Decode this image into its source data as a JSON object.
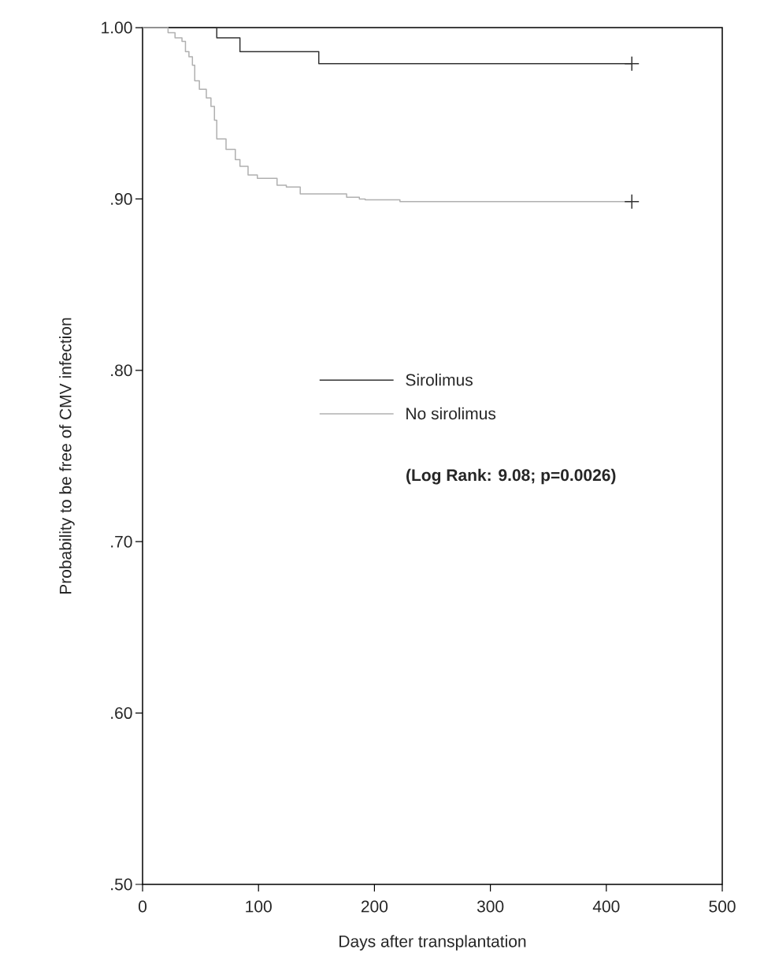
{
  "chart_data": {
    "type": "step",
    "xlabel": "Days after transplantation",
    "ylabel": "Probability to be free of CMV infection",
    "xlim": [
      0,
      500
    ],
    "ylim": [
      0.5,
      1.0
    ],
    "xticks": [
      0,
      100,
      200,
      300,
      400,
      500
    ],
    "yticks": [
      {
        "value": 0.5,
        "label": ".50"
      },
      {
        "value": 0.6,
        "label": ".60"
      },
      {
        "value": 0.7,
        "label": ".70"
      },
      {
        "value": 0.8,
        "label": ".80"
      },
      {
        "value": 0.9,
        "label": ".90"
      },
      {
        "value": 1.0,
        "label": "1.00"
      }
    ],
    "legend": "center",
    "annotations": [
      "(Log Rank: 9.08; p=0.0026)"
    ],
    "series": [
      {
        "name": "Sirolimus",
        "color": "#333333",
        "x": [
          0,
          64,
          84,
          152,
          422
        ],
        "values": [
          1.0,
          0.994,
          0.986,
          0.979,
          0.979
        ]
      },
      {
        "name": "No sirolimus",
        "color": "#b0b0b0",
        "x": [
          0,
          22,
          28,
          34,
          37,
          40,
          43,
          45,
          49,
          55,
          59,
          62,
          64,
          72,
          80,
          84,
          91,
          99,
          116,
          124,
          136,
          176,
          187,
          192,
          222,
          422
        ],
        "values": [
          1.0,
          0.997,
          0.994,
          0.992,
          0.986,
          0.983,
          0.978,
          0.969,
          0.964,
          0.959,
          0.954,
          0.946,
          0.935,
          0.929,
          0.923,
          0.919,
          0.914,
          0.912,
          0.908,
          0.907,
          0.903,
          0.901,
          0.9,
          0.8995,
          0.8985,
          0.8985
        ]
      },
      {
        "type": "scatter",
        "marker": "cross",
        "color": "#333333",
        "x": [
          422,
          422
        ],
        "values": [
          0.979,
          0.8985
        ]
      }
    ]
  }
}
